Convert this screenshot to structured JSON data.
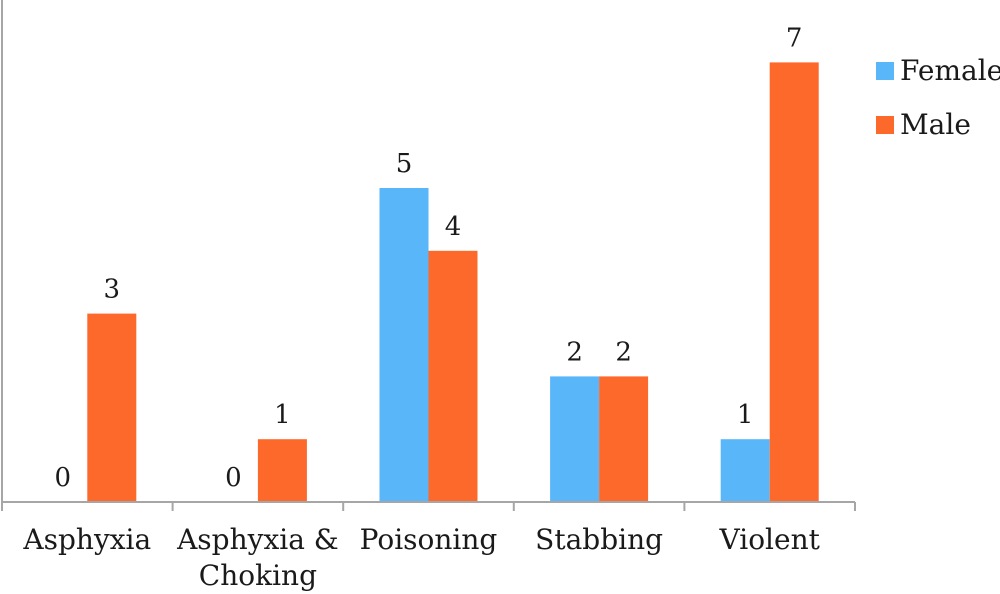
{
  "chart_data": {
    "type": "bar",
    "title": "",
    "xlabel": "",
    "ylabel": "",
    "categories": [
      "Asphyxia",
      "Asphyxia & Choking",
      "Poisoning",
      "Stabbing",
      "Violent"
    ],
    "category_lines": [
      [
        "Asphyxia"
      ],
      [
        "Asphyxia &",
        "Choking"
      ],
      [
        "Poisoning"
      ],
      [
        "Stabbing"
      ],
      [
        "Violent"
      ]
    ],
    "series": [
      {
        "name": "Female",
        "color": "#58b6f9",
        "values": [
          0,
          0,
          5,
          2,
          1
        ]
      },
      {
        "name": "Male",
        "color": "#fd682b",
        "values": [
          3,
          1,
          4,
          2,
          7
        ]
      }
    ],
    "ylim": [
      0,
      7
    ],
    "grid": false,
    "legend_position": "top-right",
    "data_labels": true
  }
}
